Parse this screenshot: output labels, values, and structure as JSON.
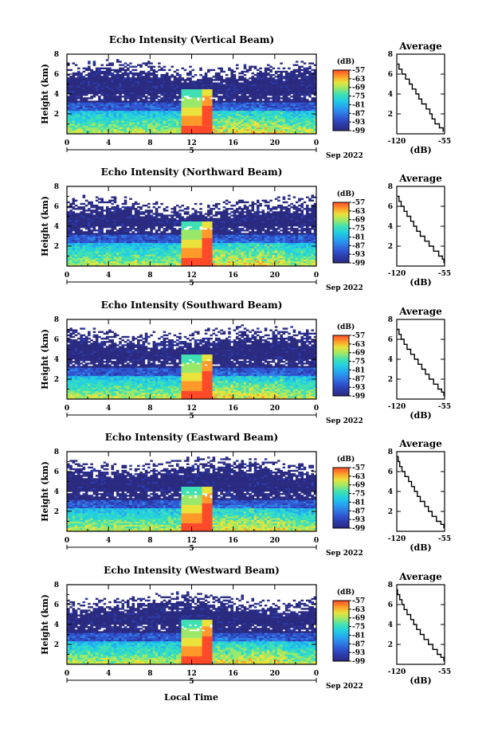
{
  "colors": {
    "colormap": [
      "#2a2a80",
      "#2c3aa8",
      "#2f55d0",
      "#2f7fe6",
      "#24a8f0",
      "#22cfe0",
      "#3fe0b4",
      "#9ae86a",
      "#e9e33c",
      "#ff9a2a",
      "#ff4a2a"
    ],
    "colormap_name": "jet-like"
  },
  "footer": {
    "xlabel": "Local Time"
  },
  "panels": [
    {
      "title": "Echo Intensity (Vertical Beam)",
      "average_title": "Average",
      "ylabel": "Height (km)",
      "yticks": [
        "2",
        "4",
        "6",
        "8"
      ],
      "xticks": [
        "0",
        "4",
        "8",
        "12",
        "16",
        "20",
        "0"
      ],
      "day_label": "5",
      "month_label": "Sep 2022",
      "cb_unit": "(dB)",
      "cb_ticks": [
        "-57",
        "-63",
        "-69",
        "-75",
        "-81",
        "-87",
        "-93",
        "-99"
      ],
      "avg_xticks": [
        "-120",
        "-55"
      ],
      "avg_yticks": [
        "2",
        "4",
        "6",
        "8"
      ],
      "avg_xlabel": "(dB)"
    },
    {
      "title": "Echo Intensity (Northward Beam)",
      "average_title": "Average",
      "ylabel": "Height (km)",
      "yticks": [
        "2",
        "4",
        "6",
        "8"
      ],
      "xticks": [
        "0",
        "4",
        "8",
        "12",
        "16",
        "20",
        "0"
      ],
      "day_label": "5",
      "month_label": "Sep 2022",
      "cb_unit": "(dB)",
      "cb_ticks": [
        "-57",
        "-63",
        "-69",
        "-75",
        "-81",
        "-87",
        "-93",
        "-99"
      ],
      "avg_xticks": [
        "-120",
        "-55"
      ],
      "avg_yticks": [
        "2",
        "4",
        "6",
        "8"
      ],
      "avg_xlabel": "(dB)"
    },
    {
      "title": "Echo Intensity (Southward Beam)",
      "average_title": "Average",
      "ylabel": "Height (km)",
      "yticks": [
        "2",
        "4",
        "6",
        "8"
      ],
      "xticks": [
        "0",
        "4",
        "8",
        "12",
        "16",
        "20",
        "0"
      ],
      "day_label": "5",
      "month_label": "Sep 2022",
      "cb_unit": "(dB)",
      "cb_ticks": [
        "-57",
        "-63",
        "-69",
        "-75",
        "-81",
        "-87",
        "-93",
        "-99"
      ],
      "avg_xticks": [
        "-120",
        "-55"
      ],
      "avg_yticks": [
        "2",
        "4",
        "6",
        "8"
      ],
      "avg_xlabel": "(dB)"
    },
    {
      "title": "Echo Intensity (Eastward Beam)",
      "average_title": "Average",
      "ylabel": "Height (km)",
      "yticks": [
        "2",
        "4",
        "6",
        "8"
      ],
      "xticks": [
        "0",
        "4",
        "8",
        "12",
        "16",
        "20",
        "0"
      ],
      "day_label": "5",
      "month_label": "Sep 2022",
      "cb_unit": "(dB)",
      "cb_ticks": [
        "-57",
        "-63",
        "-69",
        "-75",
        "-81",
        "-87",
        "-93",
        "-99"
      ],
      "avg_xticks": [
        "-120",
        "-55"
      ],
      "avg_yticks": [
        "2",
        "4",
        "6",
        "8"
      ],
      "avg_xlabel": "(dB)"
    },
    {
      "title": "Echo Intensity (Westward Beam)",
      "average_title": "Average",
      "ylabel": "Height (km)",
      "yticks": [
        "2",
        "4",
        "6",
        "8"
      ],
      "xticks": [
        "0",
        "4",
        "8",
        "12",
        "16",
        "20",
        "0"
      ],
      "day_label": "5",
      "month_label": "Sep 2022",
      "cb_unit": "(dB)",
      "cb_ticks": [
        "-57",
        "-63",
        "-69",
        "-75",
        "-81",
        "-87",
        "-93",
        "-99"
      ],
      "avg_xticks": [
        "-120",
        "-55"
      ],
      "avg_yticks": [
        "2",
        "4",
        "6",
        "8"
      ],
      "avg_xlabel": "(dB)"
    }
  ],
  "chart_data": [
    {
      "type": "heatmap",
      "title": "Echo Intensity (Vertical Beam)",
      "xlabel": "",
      "ylabel": "Height (km)",
      "xlim": [
        0,
        24
      ],
      "ylim": [
        0,
        8
      ],
      "clim": [
        -99,
        -57
      ],
      "units": "dB",
      "top_of_echo_km": 6.1,
      "enhanced_echo_hours": [
        11.5,
        12.5,
        13.5
      ],
      "profile": {
        "xlim": [
          -120,
          -55
        ],
        "ylim": [
          0,
          8
        ],
        "heights": [
          0.2,
          0.6,
          1.0,
          1.5,
          2.0,
          2.5,
          3.0,
          3.5,
          4.0,
          4.5,
          5.0,
          5.5,
          6.0,
          6.5,
          7.0
        ],
        "values": [
          -57,
          -62,
          -68,
          -72,
          -75,
          -80,
          -86,
          -90,
          -94,
          -99,
          -103,
          -108,
          -113,
          -117,
          -119
        ]
      }
    },
    {
      "type": "heatmap",
      "title": "Echo Intensity (Northward Beam)",
      "xlabel": "",
      "ylabel": "Height (km)",
      "xlim": [
        0,
        24
      ],
      "ylim": [
        0,
        8
      ],
      "clim": [
        -99,
        -57
      ],
      "units": "dB",
      "top_of_echo_km": 5.7,
      "enhanced_echo_hours": [
        11.5,
        12.5,
        13.5
      ],
      "profile": {
        "xlim": [
          -120,
          -55
        ],
        "ylim": [
          0,
          8
        ],
        "heights": [
          0.3,
          0.7,
          1.0,
          1.5,
          2.0,
          2.5,
          3.0,
          3.5,
          4.0,
          4.5,
          5.0,
          5.5,
          6.0,
          6.5,
          7.0
        ],
        "values": [
          -56,
          -58,
          -63,
          -70,
          -76,
          -82,
          -88,
          -93,
          -97,
          -101,
          -106,
          -110,
          -114,
          -117,
          -119
        ]
      }
    },
    {
      "type": "heatmap",
      "title": "Echo Intensity (Southward Beam)",
      "xlabel": "",
      "ylabel": "Height (km)",
      "xlim": [
        0,
        24
      ],
      "ylim": [
        0,
        8
      ],
      "clim": [
        -99,
        -57
      ],
      "units": "dB",
      "top_of_echo_km": 6.0,
      "enhanced_echo_hours": [
        11.5,
        12.5,
        13.5
      ],
      "profile": {
        "xlim": [
          -120,
          -55
        ],
        "ylim": [
          0,
          8
        ],
        "heights": [
          0.3,
          0.7,
          1.0,
          1.5,
          2.0,
          2.5,
          3.0,
          3.5,
          4.0,
          4.5,
          5.0,
          5.5,
          6.0,
          6.5,
          7.0
        ],
        "values": [
          -56,
          -59,
          -64,
          -70,
          -76,
          -81,
          -86,
          -91,
          -96,
          -101,
          -106,
          -110,
          -114,
          -117,
          -120
        ]
      }
    },
    {
      "type": "heatmap",
      "title": "Echo Intensity (Eastward Beam)",
      "xlabel": "",
      "ylabel": "Height (km)",
      "xlim": [
        0,
        24
      ],
      "ylim": [
        0,
        8
      ],
      "clim": [
        -99,
        -57
      ],
      "units": "dB",
      "top_of_echo_km": 6.2,
      "enhanced_echo_hours": [
        11.5,
        12.5,
        13.5
      ],
      "profile": {
        "xlim": [
          -120,
          -55
        ],
        "ylim": [
          0,
          8
        ],
        "heights": [
          0.3,
          0.7,
          1.0,
          1.5,
          2.0,
          2.5,
          3.0,
          3.5,
          4.0,
          4.5,
          5.0,
          5.5,
          6.0,
          6.5,
          7.0,
          7.5
        ],
        "values": [
          -56,
          -60,
          -66,
          -72,
          -77,
          -82,
          -88,
          -92,
          -96,
          -100,
          -104,
          -109,
          -113,
          -116,
          -118,
          -120
        ]
      }
    },
    {
      "type": "heatmap",
      "title": "Echo Intensity (Westward Beam)",
      "xlabel": "Local Time",
      "ylabel": "Height (km)",
      "xlim": [
        0,
        24
      ],
      "ylim": [
        0,
        8
      ],
      "clim": [
        -99,
        -57
      ],
      "units": "dB",
      "top_of_echo_km": 5.9,
      "enhanced_echo_hours": [
        11.5,
        12.5,
        13.5
      ],
      "profile": {
        "xlim": [
          -120,
          -55
        ],
        "ylim": [
          0,
          8
        ],
        "heights": [
          0.3,
          0.7,
          1.0,
          1.5,
          2.0,
          2.5,
          3.0,
          3.5,
          4.0,
          4.5,
          5.0,
          5.5,
          6.0,
          6.5,
          7.0,
          7.5
        ],
        "values": [
          -56,
          -60,
          -65,
          -71,
          -77,
          -83,
          -88,
          -93,
          -97,
          -101,
          -106,
          -110,
          -113,
          -116,
          -119,
          -120
        ]
      }
    }
  ]
}
